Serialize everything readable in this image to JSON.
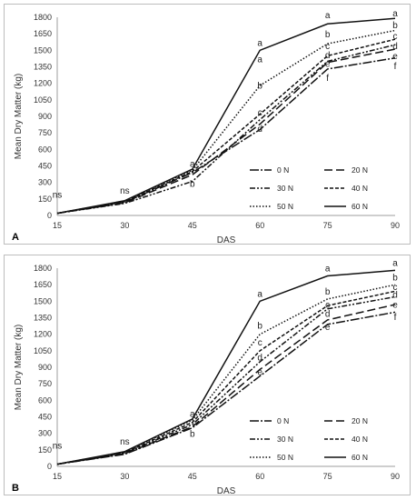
{
  "chart_data": [
    {
      "type": "line",
      "panel_label": "A",
      "xlabel": "DAS",
      "ylabel": "Mean Dry Matter (kg)",
      "x": [
        15,
        30,
        45,
        60,
        75,
        90
      ],
      "xlim": [
        15,
        90
      ],
      "ylim": [
        0,
        1800
      ],
      "yticks": [
        0,
        150,
        300,
        450,
        600,
        750,
        900,
        1050,
        1200,
        1350,
        1500,
        1650,
        1800
      ],
      "grid": false,
      "legend_position": "bottom-right",
      "series": [
        {
          "name": "0 N",
          "dash": "10 2 2 2",
          "values": [
            20,
            120,
            390,
            780,
            1330,
            1430
          ],
          "end_label": "f"
        },
        {
          "name": "20 N",
          "dash": "9 4",
          "values": [
            20,
            115,
            370,
            830,
            1390,
            1510
          ],
          "end_label": "e"
        },
        {
          "name": "30 N",
          "dash": "6 2 2 2 2 2",
          "values": [
            20,
            110,
            310,
            870,
            1400,
            1550
          ],
          "end_label": "d"
        },
        {
          "name": "40 N",
          "dash": "4 2",
          "values": [
            20,
            125,
            400,
            920,
            1450,
            1600
          ],
          "end_label": "c"
        },
        {
          "name": "50 N",
          "dash": "1.5 2",
          "values": [
            20,
            130,
            410,
            1180,
            1560,
            1680
          ],
          "end_label": "b"
        },
        {
          "name": "60 N",
          "dash": "",
          "values": [
            20,
            135,
            420,
            1500,
            1740,
            1790
          ],
          "end_label": "a"
        }
      ],
      "annotations": [
        {
          "x": 15,
          "y": 160,
          "text": "ns"
        },
        {
          "x": 30,
          "y": 200,
          "text": "ns"
        },
        {
          "x": 45,
          "y": 440,
          "text": "a"
        },
        {
          "x": 45,
          "y": 260,
          "text": "b"
        },
        {
          "x": 60,
          "y": 1540,
          "text": "a"
        },
        {
          "x": 60,
          "y": 1390,
          "text": "a"
        },
        {
          "x": 60,
          "y": 1150,
          "text": "b"
        },
        {
          "x": 60,
          "y": 910,
          "text": "c"
        },
        {
          "x": 60,
          "y": 760,
          "text": "d"
        },
        {
          "x": 75,
          "y": 1790,
          "text": "a"
        },
        {
          "x": 75,
          "y": 1620,
          "text": "b"
        },
        {
          "x": 75,
          "y": 1510,
          "text": "c"
        },
        {
          "x": 75,
          "y": 1430,
          "text": "d"
        },
        {
          "x": 75,
          "y": 1350,
          "text": "e"
        },
        {
          "x": 75,
          "y": 1220,
          "text": "f"
        },
        {
          "x": 90,
          "y": 1810,
          "text": "a"
        },
        {
          "x": 90,
          "y": 1700,
          "text": "b"
        },
        {
          "x": 90,
          "y": 1600,
          "text": "c"
        },
        {
          "x": 90,
          "y": 1510,
          "text": "d"
        },
        {
          "x": 90,
          "y": 1420,
          "text": "e"
        },
        {
          "x": 90,
          "y": 1330,
          "text": "f"
        }
      ]
    },
    {
      "type": "line",
      "panel_label": "B",
      "xlabel": "DAS",
      "ylabel": "Mean Dry Matter (kg)",
      "x": [
        15,
        30,
        45,
        60,
        75,
        90
      ],
      "xlim": [
        15,
        90
      ],
      "ylim": [
        0,
        1800
      ],
      "yticks": [
        0,
        150,
        300,
        450,
        600,
        750,
        900,
        1050,
        1200,
        1350,
        1500,
        1650,
        1800
      ],
      "grid": false,
      "legend_position": "bottom-right",
      "series": [
        {
          "name": "0 N",
          "dash": "10 2 2 2",
          "values": [
            20,
            110,
            350,
            820,
            1290,
            1400
          ],
          "end_label": "f"
        },
        {
          "name": "20 N",
          "dash": "9 4",
          "values": [
            20,
            115,
            360,
            880,
            1330,
            1470
          ],
          "end_label": "e"
        },
        {
          "name": "30 N",
          "dash": "6 2 2 2 2 2",
          "values": [
            20,
            120,
            380,
            950,
            1430,
            1540
          ],
          "end_label": "d"
        },
        {
          "name": "40 N",
          "dash": "4 2",
          "values": [
            20,
            125,
            400,
            1050,
            1460,
            1590
          ],
          "end_label": "c"
        },
        {
          "name": "50 N",
          "dash": "1.5 2",
          "values": [
            20,
            130,
            420,
            1200,
            1520,
            1650
          ],
          "end_label": "b"
        },
        {
          "name": "60 N",
          "dash": "",
          "values": [
            20,
            135,
            430,
            1500,
            1730,
            1780
          ],
          "end_label": "a"
        }
      ],
      "annotations": [
        {
          "x": 15,
          "y": 160,
          "text": "ns"
        },
        {
          "x": 30,
          "y": 200,
          "text": "ns"
        },
        {
          "x": 45,
          "y": 450,
          "text": "a"
        },
        {
          "x": 45,
          "y": 270,
          "text": "b"
        },
        {
          "x": 60,
          "y": 1540,
          "text": "a"
        },
        {
          "x": 60,
          "y": 1250,
          "text": "b"
        },
        {
          "x": 60,
          "y": 1100,
          "text": "c"
        },
        {
          "x": 60,
          "y": 960,
          "text": "d"
        },
        {
          "x": 60,
          "y": 830,
          "text": "e"
        },
        {
          "x": 75,
          "y": 1770,
          "text": "a"
        },
        {
          "x": 75,
          "y": 1560,
          "text": "b"
        },
        {
          "x": 75,
          "y": 1440,
          "text": "c"
        },
        {
          "x": 75,
          "y": 1360,
          "text": "d"
        },
        {
          "x": 75,
          "y": 1240,
          "text": "e"
        },
        {
          "x": 90,
          "y": 1820,
          "text": "a"
        },
        {
          "x": 90,
          "y": 1690,
          "text": "b"
        },
        {
          "x": 90,
          "y": 1600,
          "text": "c"
        },
        {
          "x": 90,
          "y": 1530,
          "text": "d"
        },
        {
          "x": 90,
          "y": 1440,
          "text": "e"
        },
        {
          "x": 90,
          "y": 1330,
          "text": "f"
        }
      ]
    }
  ]
}
